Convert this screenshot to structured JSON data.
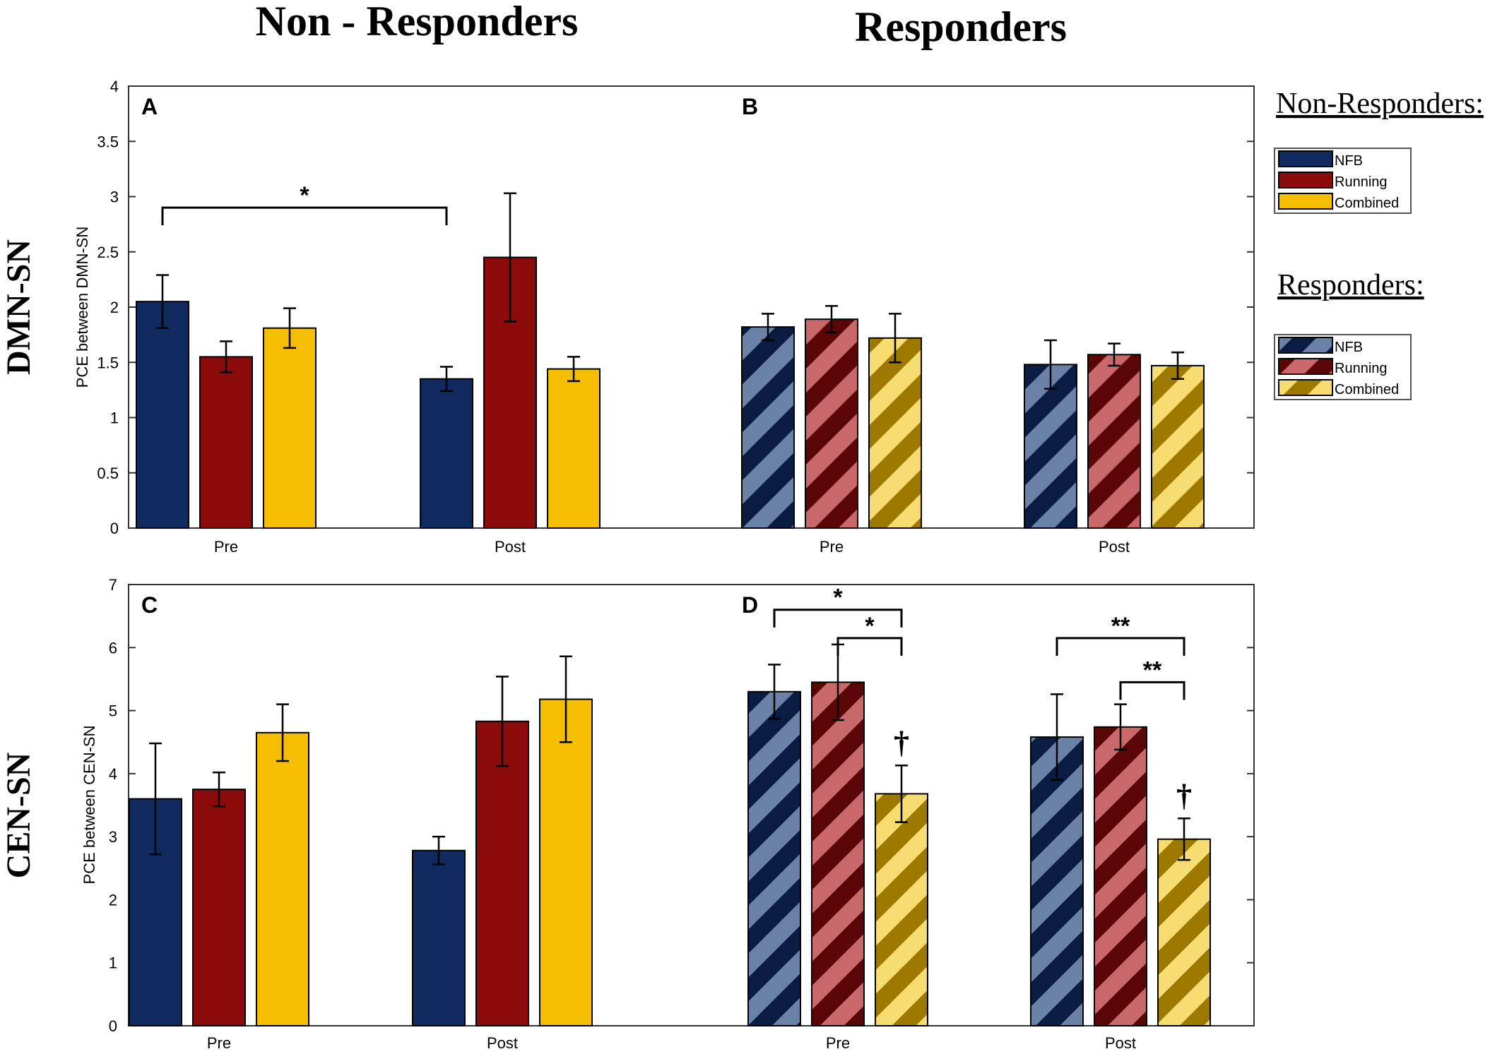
{
  "figure": {
    "col_title_left": "Non - Responders",
    "col_title_right": "Responders",
    "row_label_top": "DMN-SN",
    "row_label_bottom": "CEN-SN"
  },
  "legend": {
    "nonresponders_title": "Non-Responders:",
    "responders_title": "Responders:",
    "items": [
      "NFB",
      "Running",
      "Combined"
    ]
  },
  "colors": {
    "NFB": "#0e2a5e",
    "Running": "#8b0b0b",
    "Combined": "#f6be00",
    "NFB_light": "#6b82a8",
    "Running_light": "#c8686a",
    "Combined_light": "#f7dc72",
    "NFB_dark": "#0b1c42",
    "Running_dark": "#5a0506",
    "Combined_dark": "#9e7900"
  },
  "chart_data": [
    {
      "panel": "A",
      "type": "bar",
      "group": "Non-Responders",
      "ylabel": "PCE between DMN-SN",
      "ylim": [
        0,
        4
      ],
      "yticks": [
        "0",
        "0.5",
        "1",
        "1.5",
        "2",
        "2.5",
        "3",
        "3.5",
        "4"
      ],
      "categories": [
        "Pre",
        "Post"
      ],
      "series": [
        {
          "name": "NFB",
          "values": [
            2.05,
            1.35
          ],
          "err": [
            0.24,
            0.11
          ]
        },
        {
          "name": "Running",
          "values": [
            1.55,
            2.45
          ],
          "err": [
            0.14,
            0.58
          ]
        },
        {
          "name": "Combined",
          "values": [
            1.81,
            1.44
          ],
          "err": [
            0.18,
            0.11
          ]
        }
      ],
      "annotations": [
        {
          "type": "bracket",
          "from": [
            0,
            0
          ],
          "to": [
            1,
            0
          ],
          "y": 2.9,
          "label": "*"
        }
      ]
    },
    {
      "panel": "B",
      "type": "bar",
      "group": "Responders",
      "ylabel": "",
      "ylim": [
        0,
        4
      ],
      "yticks": [],
      "categories": [
        "Pre",
        "Post"
      ],
      "series": [
        {
          "name": "NFB",
          "values": [
            1.82,
            1.48
          ],
          "err": [
            0.12,
            0.22
          ]
        },
        {
          "name": "Running",
          "values": [
            1.89,
            1.57
          ],
          "err": [
            0.12,
            0.1
          ]
        },
        {
          "name": "Combined",
          "values": [
            1.72,
            1.47
          ],
          "err": [
            0.22,
            0.12
          ]
        }
      ],
      "annotations": []
    },
    {
      "panel": "C",
      "type": "bar",
      "group": "Non-Responders",
      "ylabel": "PCE between CEN-SN",
      "ylim": [
        0,
        7
      ],
      "yticks": [
        "0",
        "1",
        "2",
        "3",
        "4",
        "5",
        "6",
        "7"
      ],
      "categories": [
        "Pre",
        "Post"
      ],
      "series": [
        {
          "name": "NFB",
          "values": [
            3.6,
            2.78
          ],
          "err": [
            0.88,
            0.22
          ]
        },
        {
          "name": "Running",
          "values": [
            3.75,
            4.83
          ],
          "err": [
            0.27,
            0.71
          ]
        },
        {
          "name": "Combined",
          "values": [
            4.65,
            5.18
          ],
          "err": [
            0.45,
            0.68
          ]
        }
      ],
      "annotations": []
    },
    {
      "panel": "D",
      "type": "bar",
      "group": "Responders",
      "ylabel": "",
      "ylim": [
        0,
        7
      ],
      "yticks": [],
      "categories": [
        "Pre",
        "Post"
      ],
      "series": [
        {
          "name": "NFB",
          "values": [
            5.3,
            4.58
          ],
          "err": [
            0.43,
            0.68
          ]
        },
        {
          "name": "Running",
          "values": [
            5.45,
            4.74
          ],
          "err": [
            0.6,
            0.36
          ]
        },
        {
          "name": "Combined",
          "values": [
            3.68,
            2.96
          ],
          "err": [
            0.45,
            0.33
          ]
        }
      ],
      "annotations": [
        {
          "type": "bracket",
          "from": [
            0,
            0
          ],
          "to": [
            0,
            2
          ],
          "y": 6.6,
          "label": "*"
        },
        {
          "type": "bracket",
          "from": [
            0,
            1
          ],
          "to": [
            0,
            2
          ],
          "y": 6.15,
          "label": "*"
        },
        {
          "type": "bracket",
          "from": [
            1,
            0
          ],
          "to": [
            1,
            2
          ],
          "y": 6.15,
          "label": "**"
        },
        {
          "type": "bracket",
          "from": [
            1,
            1
          ],
          "to": [
            1,
            2
          ],
          "y": 5.45,
          "label": "**"
        },
        {
          "type": "marker",
          "at": [
            0,
            2
          ],
          "label": "†"
        },
        {
          "type": "marker",
          "at": [
            1,
            2
          ],
          "label": "†"
        }
      ]
    }
  ]
}
